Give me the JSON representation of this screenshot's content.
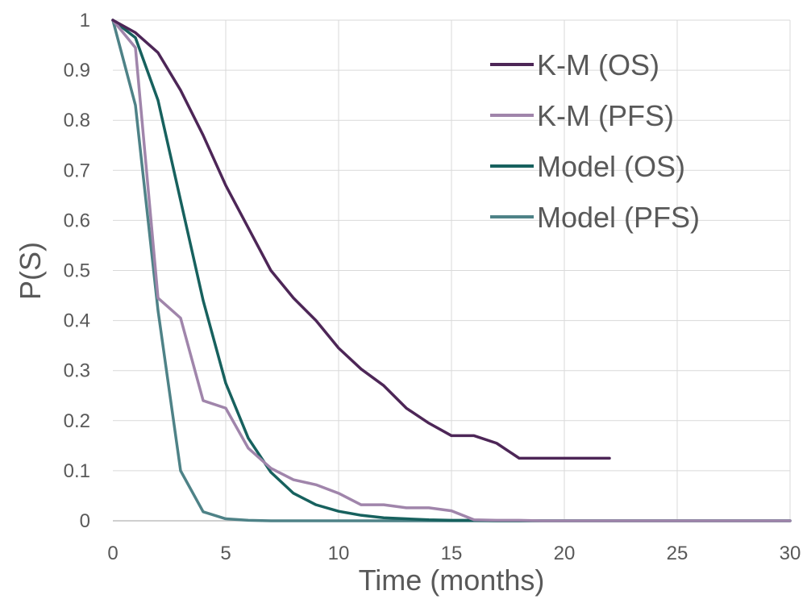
{
  "chart_data": {
    "type": "line",
    "title": "",
    "xlabel": "Time (months)",
    "ylabel": "P(S)",
    "xlim": [
      0,
      30
    ],
    "ylim": [
      0,
      1
    ],
    "xticks": [
      0,
      5,
      10,
      15,
      20,
      25,
      30
    ],
    "yticks": [
      0,
      0.1,
      0.2,
      0.3,
      0.4,
      0.5,
      0.6,
      0.7,
      0.8,
      0.9,
      1
    ],
    "ytick_labels": [
      "0",
      "0.1",
      "0.2",
      "0.3",
      "0.4",
      "0.5",
      "0.6",
      "0.7",
      "0.8",
      "0.9",
      "1"
    ],
    "grid": true,
    "legend_position": "top-right",
    "series": [
      {
        "name": "K-M (OS)",
        "color": "#4d2657",
        "x": [
          0,
          1,
          2,
          3,
          4,
          5,
          6,
          7,
          8,
          9,
          10,
          11,
          12,
          13,
          14,
          15,
          16,
          17,
          18,
          19,
          20,
          21,
          22
        ],
        "y": [
          1,
          0.975,
          0.935,
          0.86,
          0.77,
          0.67,
          0.585,
          0.5,
          0.445,
          0.4,
          0.345,
          0.303,
          0.27,
          0.225,
          0.195,
          0.17,
          0.17,
          0.155,
          0.125,
          0.125,
          0.125,
          0.125,
          0.125
        ]
      },
      {
        "name": "K-M (PFS)",
        "color": "#a085ab",
        "x": [
          0,
          1,
          2,
          3,
          4,
          5,
          6,
          7,
          8,
          9,
          10,
          11,
          12,
          13,
          14,
          15,
          16,
          17,
          18,
          19,
          20,
          21,
          22,
          23,
          24,
          25,
          26,
          27,
          28,
          29,
          30
        ],
        "y": [
          1,
          0.945,
          0.445,
          0.405,
          0.24,
          0.225,
          0.145,
          0.105,
          0.082,
          0.072,
          0.055,
          0.032,
          0.032,
          0.026,
          0.026,
          0.02,
          0.002,
          0.001,
          0.001,
          0,
          0,
          0,
          0,
          0,
          0,
          0,
          0,
          0,
          0,
          0,
          0
        ]
      },
      {
        "name": "Model (OS)",
        "color": "#17615e",
        "x": [
          0,
          1,
          2,
          3,
          4,
          5,
          6,
          7,
          8,
          9,
          10,
          11,
          12,
          13,
          14,
          15,
          16,
          17,
          18,
          19,
          20,
          21,
          22,
          23,
          24,
          25,
          26,
          27,
          28,
          29,
          30
        ],
        "y": [
          1,
          0.965,
          0.84,
          0.64,
          0.44,
          0.275,
          0.165,
          0.097,
          0.055,
          0.032,
          0.019,
          0.011,
          0.006,
          0.004,
          0.002,
          0.001,
          0.001,
          0,
          0,
          0,
          0,
          0,
          0,
          0,
          0,
          0,
          0,
          0,
          0,
          0,
          0
        ]
      },
      {
        "name": "Model (PFS)",
        "color": "#4e8287",
        "x": [
          0,
          1,
          2,
          3,
          4,
          5,
          6,
          7,
          8,
          9,
          10,
          11,
          12,
          13,
          14,
          15,
          16,
          17,
          18,
          19,
          20,
          21,
          22,
          23,
          24,
          25,
          26,
          27,
          28,
          29,
          30
        ],
        "y": [
          1,
          0.83,
          0.42,
          0.1,
          0.018,
          0.004,
          0.001,
          0,
          0,
          0,
          0,
          0,
          0,
          0,
          0,
          0,
          0,
          0,
          0,
          0,
          0,
          0,
          0,
          0,
          0,
          0,
          0,
          0,
          0,
          0,
          0
        ]
      }
    ]
  }
}
